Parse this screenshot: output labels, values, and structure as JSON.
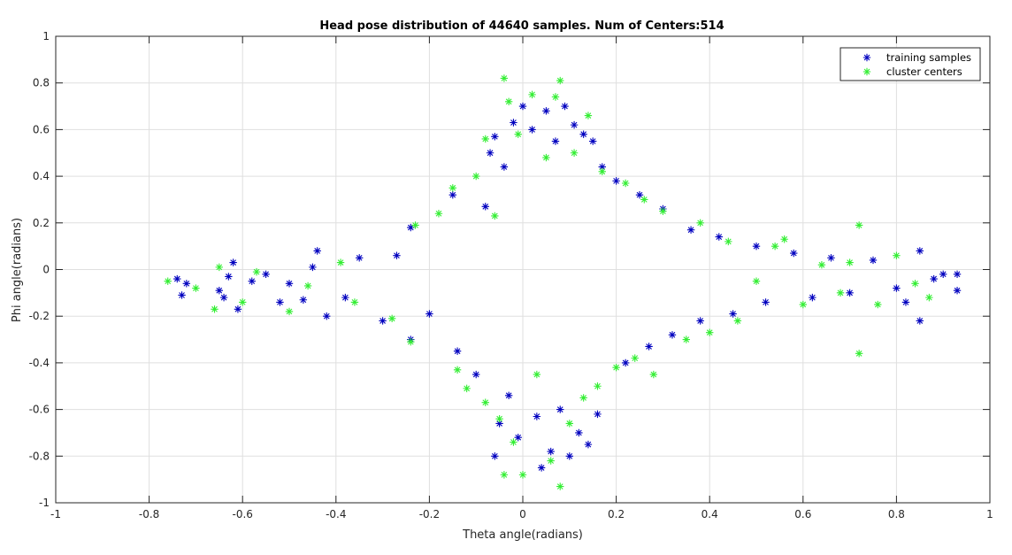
{
  "chart_data": {
    "type": "scatter",
    "title": "Head pose distribution of 44640 samples. Num of Centers:514",
    "xlabel": "Theta angle(radians)",
    "ylabel": "Phi angle(radians)",
    "xlim": [
      -1,
      1
    ],
    "ylim": [
      -1,
      1
    ],
    "xticks": [
      -1,
      -0.8,
      -0.6,
      -0.4,
      -0.2,
      0,
      0.2,
      0.4,
      0.6,
      0.8,
      1
    ],
    "yticks": [
      -1,
      -0.8,
      -0.6,
      -0.4,
      -0.2,
      0,
      0.2,
      0.4,
      0.6,
      0.8,
      1
    ],
    "xtick_labels": [
      "-1",
      "-0.8",
      "-0.6",
      "-0.4",
      "-0.2",
      "0",
      "0.2",
      "0.4",
      "0.6",
      "0.8",
      "1"
    ],
    "ytick_labels": [
      "-1",
      "-0.8",
      "-0.6",
      "-0.4",
      "-0.2",
      "0",
      "0.2",
      "0.4",
      "0.6",
      "0.8",
      "1"
    ],
    "grid": true,
    "legend_position": "top-right",
    "marker": "*",
    "series": [
      {
        "name": "training samples",
        "color": "#0000bf",
        "points": [
          [
            -0.74,
            -0.04
          ],
          [
            -0.73,
            -0.11
          ],
          [
            -0.72,
            -0.06
          ],
          [
            -0.65,
            -0.09
          ],
          [
            -0.64,
            -0.12
          ],
          [
            -0.63,
            -0.03
          ],
          [
            -0.62,
            0.03
          ],
          [
            -0.61,
            -0.17
          ],
          [
            -0.58,
            -0.05
          ],
          [
            -0.55,
            -0.02
          ],
          [
            -0.52,
            -0.14
          ],
          [
            -0.5,
            -0.06
          ],
          [
            -0.47,
            -0.13
          ],
          [
            -0.45,
            0.01
          ],
          [
            -0.44,
            0.08
          ],
          [
            -0.42,
            -0.2
          ],
          [
            -0.38,
            -0.12
          ],
          [
            -0.35,
            0.05
          ],
          [
            -0.3,
            -0.22
          ],
          [
            -0.27,
            0.06
          ],
          [
            -0.24,
            0.18
          ],
          [
            -0.24,
            -0.3
          ],
          [
            -0.2,
            -0.19
          ],
          [
            -0.15,
            0.32
          ],
          [
            -0.14,
            -0.35
          ],
          [
            -0.1,
            -0.45
          ],
          [
            -0.08,
            0.27
          ],
          [
            -0.07,
            0.5
          ],
          [
            -0.06,
            0.57
          ],
          [
            -0.05,
            -0.66
          ],
          [
            -0.04,
            0.44
          ],
          [
            -0.06,
            -0.8
          ],
          [
            -0.03,
            -0.54
          ],
          [
            -0.02,
            0.63
          ],
          [
            -0.01,
            -0.72
          ],
          [
            0.0,
            0.7
          ],
          [
            0.02,
            0.6
          ],
          [
            0.03,
            -0.63
          ],
          [
            0.04,
            -0.85
          ],
          [
            0.05,
            0.68
          ],
          [
            0.06,
            -0.78
          ],
          [
            0.07,
            0.55
          ],
          [
            0.08,
            -0.6
          ],
          [
            0.09,
            0.7
          ],
          [
            0.1,
            -0.8
          ],
          [
            0.11,
            0.62
          ],
          [
            0.12,
            -0.7
          ],
          [
            0.13,
            0.58
          ],
          [
            0.14,
            -0.75
          ],
          [
            0.15,
            0.55
          ],
          [
            0.16,
            -0.62
          ],
          [
            0.17,
            0.44
          ],
          [
            0.2,
            0.38
          ],
          [
            0.22,
            -0.4
          ],
          [
            0.25,
            0.32
          ],
          [
            0.27,
            -0.33
          ],
          [
            0.3,
            0.26
          ],
          [
            0.32,
            -0.28
          ],
          [
            0.36,
            0.17
          ],
          [
            0.38,
            -0.22
          ],
          [
            0.42,
            0.14
          ],
          [
            0.45,
            -0.19
          ],
          [
            0.5,
            0.1
          ],
          [
            0.52,
            -0.14
          ],
          [
            0.58,
            0.07
          ],
          [
            0.62,
            -0.12
          ],
          [
            0.66,
            0.05
          ],
          [
            0.7,
            -0.1
          ],
          [
            0.75,
            0.04
          ],
          [
            0.8,
            -0.08
          ],
          [
            0.82,
            -0.14
          ],
          [
            0.85,
            0.08
          ],
          [
            0.85,
            -0.22
          ],
          [
            0.88,
            -0.04
          ],
          [
            0.9,
            -0.02
          ],
          [
            0.93,
            -0.02
          ],
          [
            0.93,
            -0.09
          ]
        ]
      },
      {
        "name": "cluster centers",
        "color": "#33ee33",
        "points": [
          [
            -0.76,
            -0.05
          ],
          [
            -0.7,
            -0.08
          ],
          [
            -0.66,
            -0.17
          ],
          [
            -0.65,
            0.01
          ],
          [
            -0.6,
            -0.14
          ],
          [
            -0.57,
            -0.01
          ],
          [
            -0.5,
            -0.18
          ],
          [
            -0.46,
            -0.07
          ],
          [
            -0.39,
            0.03
          ],
          [
            -0.36,
            -0.14
          ],
          [
            -0.28,
            -0.21
          ],
          [
            -0.24,
            -0.31
          ],
          [
            -0.23,
            0.19
          ],
          [
            -0.18,
            0.24
          ],
          [
            -0.15,
            0.35
          ],
          [
            -0.14,
            -0.43
          ],
          [
            -0.12,
            -0.51
          ],
          [
            -0.1,
            0.4
          ],
          [
            -0.08,
            -0.57
          ],
          [
            -0.08,
            0.56
          ],
          [
            -0.06,
            0.23
          ],
          [
            -0.05,
            -0.64
          ],
          [
            -0.04,
            0.82
          ],
          [
            -0.04,
            -0.88
          ],
          [
            -0.03,
            0.72
          ],
          [
            -0.02,
            -0.74
          ],
          [
            -0.01,
            0.58
          ],
          [
            0.0,
            -0.88
          ],
          [
            0.02,
            0.75
          ],
          [
            0.03,
            -0.45
          ],
          [
            0.05,
            0.48
          ],
          [
            0.06,
            -0.82
          ],
          [
            0.07,
            0.74
          ],
          [
            0.08,
            0.81
          ],
          [
            0.08,
            -0.93
          ],
          [
            0.1,
            -0.66
          ],
          [
            0.11,
            0.5
          ],
          [
            0.13,
            -0.55
          ],
          [
            0.14,
            0.66
          ],
          [
            0.16,
            -0.5
          ],
          [
            0.17,
            0.42
          ],
          [
            0.2,
            -0.42
          ],
          [
            0.22,
            0.37
          ],
          [
            0.24,
            -0.38
          ],
          [
            0.26,
            0.3
          ],
          [
            0.28,
            -0.45
          ],
          [
            0.3,
            0.25
          ],
          [
            0.35,
            -0.3
          ],
          [
            0.38,
            0.2
          ],
          [
            0.4,
            -0.27
          ],
          [
            0.44,
            0.12
          ],
          [
            0.46,
            -0.22
          ],
          [
            0.5,
            -0.05
          ],
          [
            0.54,
            0.1
          ],
          [
            0.56,
            0.13
          ],
          [
            0.6,
            -0.15
          ],
          [
            0.64,
            0.02
          ],
          [
            0.68,
            -0.1
          ],
          [
            0.7,
            0.03
          ],
          [
            0.72,
            0.19
          ],
          [
            0.72,
            -0.36
          ],
          [
            0.76,
            -0.15
          ],
          [
            0.8,
            0.06
          ],
          [
            0.84,
            -0.06
          ],
          [
            0.87,
            -0.12
          ]
        ]
      }
    ]
  }
}
